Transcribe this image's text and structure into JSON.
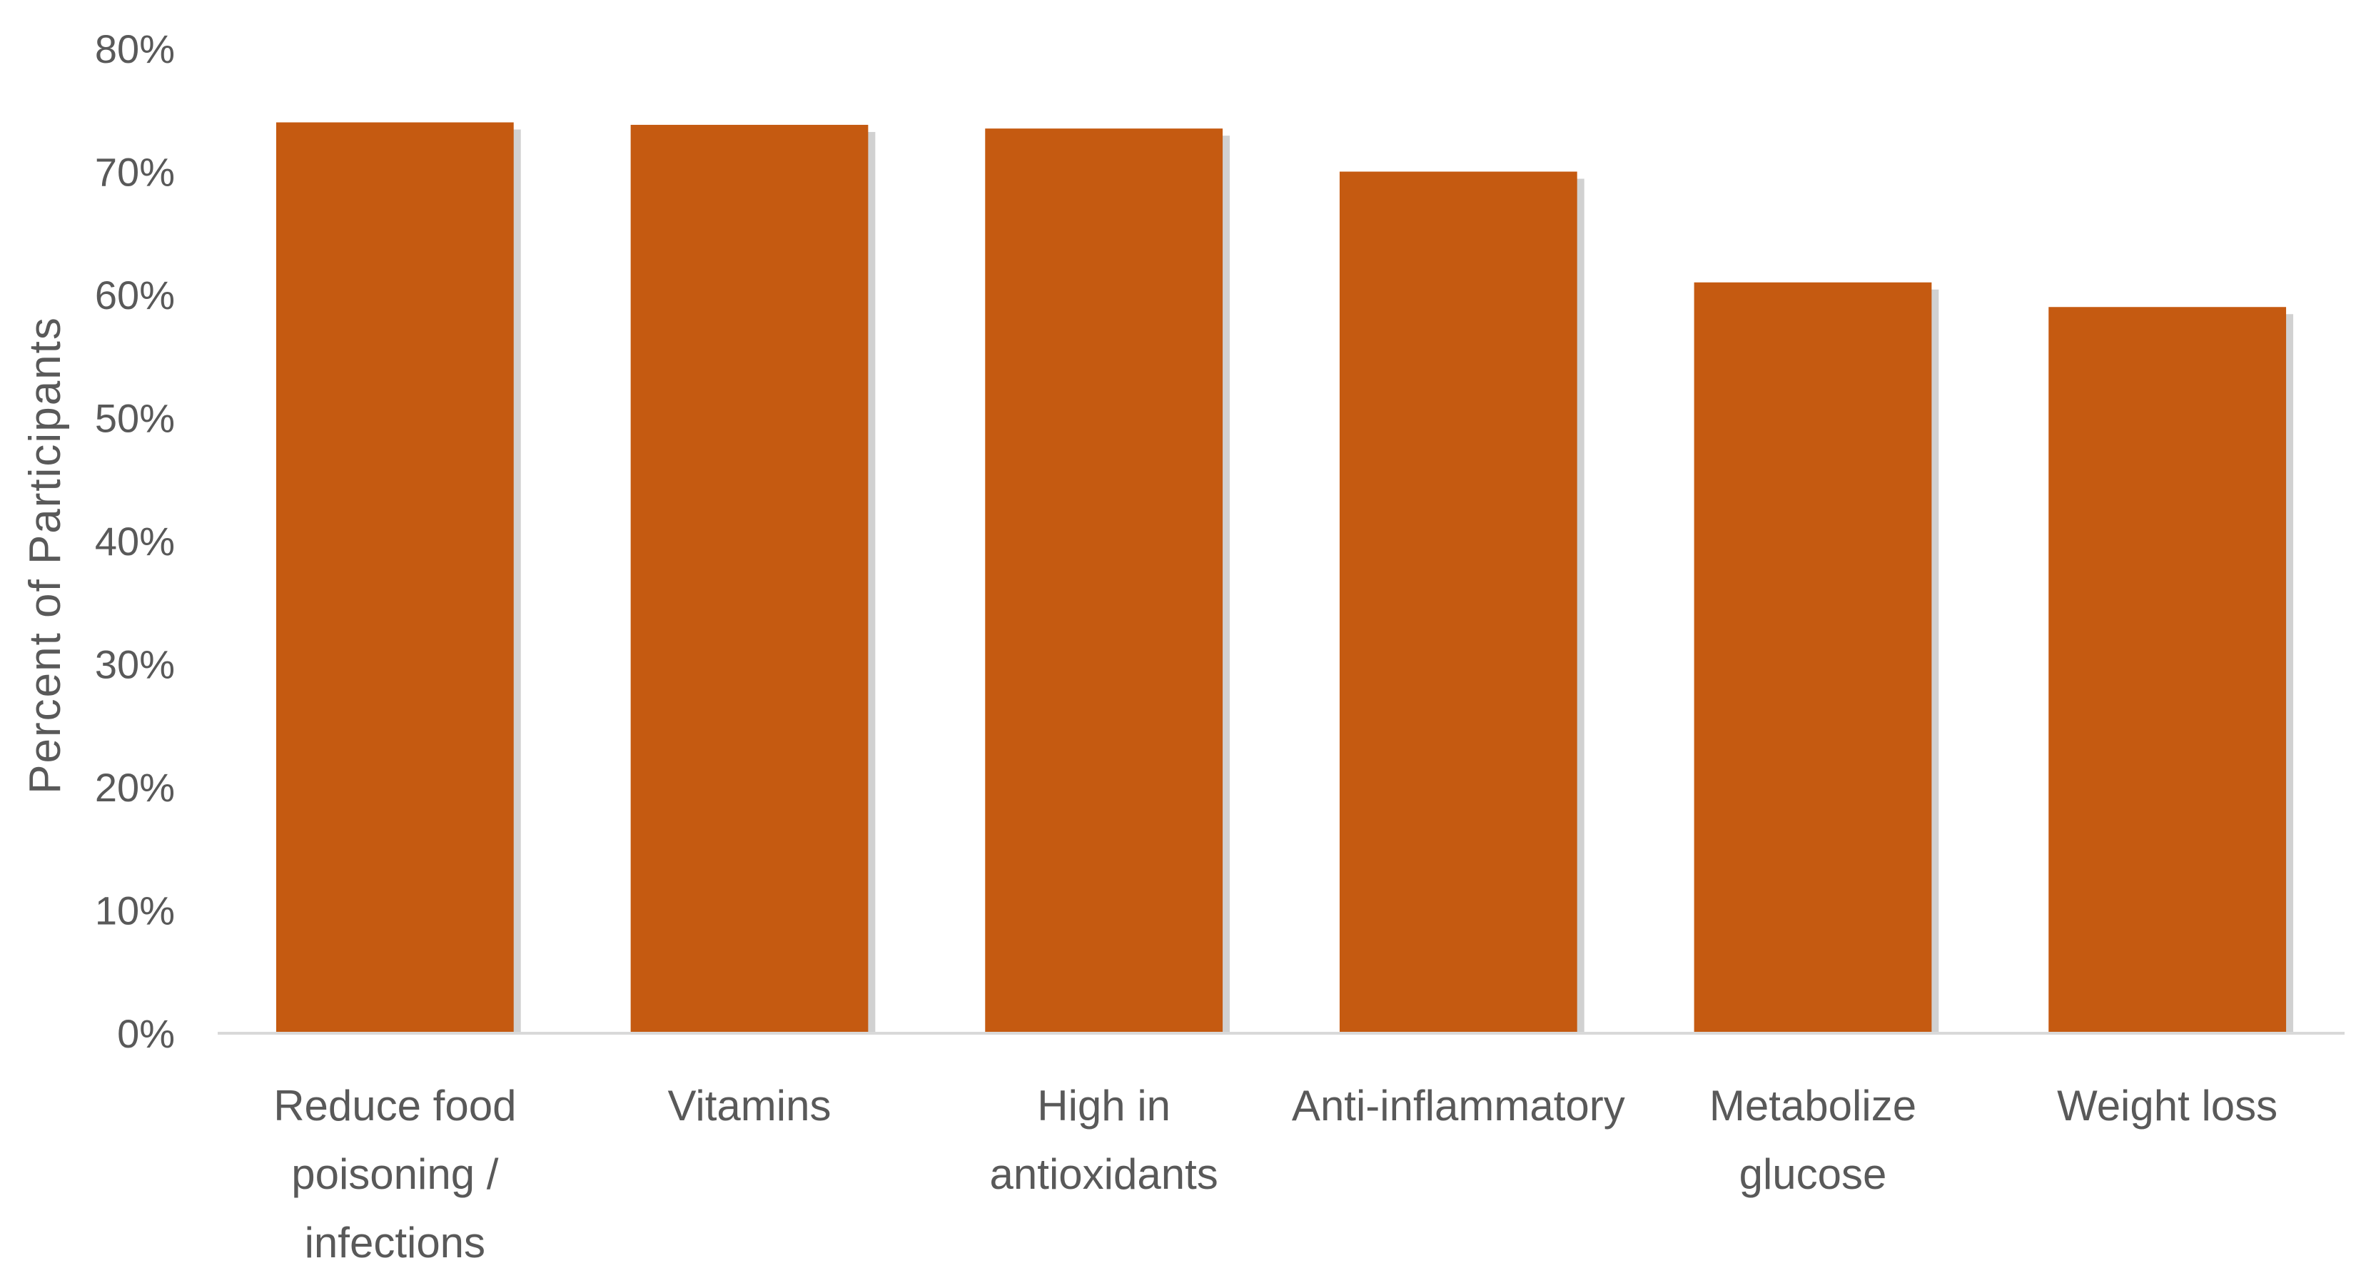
{
  "chart_data": {
    "type": "bar",
    "title": "",
    "xlabel": "",
    "ylabel": "Percent of Participants",
    "categories": [
      [
        "Reduce food",
        "poisoning /",
        "infections"
      ],
      [
        "Vitamins"
      ],
      [
        "High in",
        "antioxidants"
      ],
      [
        "Anti-inflammatory"
      ],
      [
        "Metabolize",
        "glucose"
      ],
      [
        "Weight loss"
      ]
    ],
    "values": [
      74,
      73.8,
      73.5,
      70,
      61,
      59
    ],
    "ylim": [
      0,
      80
    ],
    "yticks": [
      0,
      10,
      20,
      30,
      40,
      50,
      60,
      70,
      80
    ],
    "ytick_labels": [
      "0%",
      "10%",
      "20%",
      "30%",
      "40%",
      "50%",
      "60%",
      "70%",
      "80%"
    ],
    "grid": false,
    "legend": "none",
    "colors": {
      "bar": "#C55A11",
      "axis": "#D9D9D9",
      "text": "#595959"
    }
  }
}
